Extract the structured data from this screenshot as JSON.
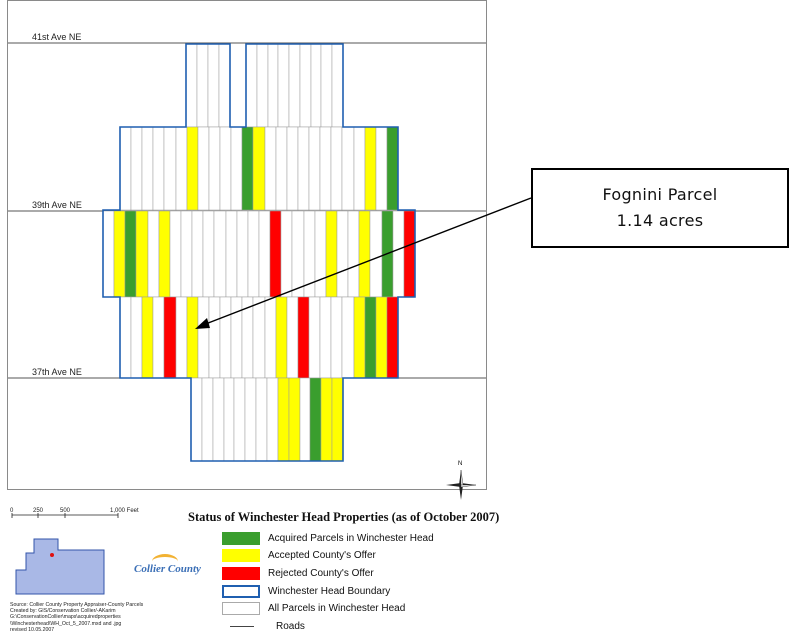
{
  "map": {
    "roads": [
      {
        "label": "41st Ave NE"
      },
      {
        "label": "39th Ave NE"
      },
      {
        "label": "37th Ave NE"
      }
    ],
    "parcel_colors": {
      "acquired": "#3a9e2e",
      "accepted": "#ffff00",
      "rejected": "#ff0000",
      "boundary": "#1f5fb0",
      "parcel_border": "#9a9a9a"
    },
    "north_label": "N"
  },
  "callout": {
    "line1": "Fognini Parcel",
    "line2": "1.14 acres"
  },
  "title": "Status of Winchester Head Properties (as of October 2007)",
  "scale_bar": {
    "labels": [
      "0",
      "250",
      "500",
      "1,000 Feet"
    ]
  },
  "legend": {
    "items": [
      {
        "label": "Acquired Parcels in Winchester Head",
        "swatch": "acquired"
      },
      {
        "label": "Accepted County's Offer",
        "swatch": "accepted"
      },
      {
        "label": "Rejected County's Offer",
        "swatch": "rejected"
      },
      {
        "label": "Winchester Head Boundary",
        "swatch": "boundary"
      },
      {
        "label": "All Parcels in Winchester Head",
        "swatch": "parcel"
      },
      {
        "label": "Roads",
        "swatch": "road"
      }
    ]
  },
  "logo": {
    "text": "Collier County"
  },
  "source": {
    "lines": [
      "Source: Collier County Property Appraiser-County Parcels",
      "Created by: GIS/Conservation Collier/-AKarim",
      "G:\\ConservationCollier\\maps\\acquiredproperties",
      "\\Winchesterhead\\WH_Oct_5_2007.mxd and .jpg",
      "revised 10.05.2007"
    ]
  }
}
